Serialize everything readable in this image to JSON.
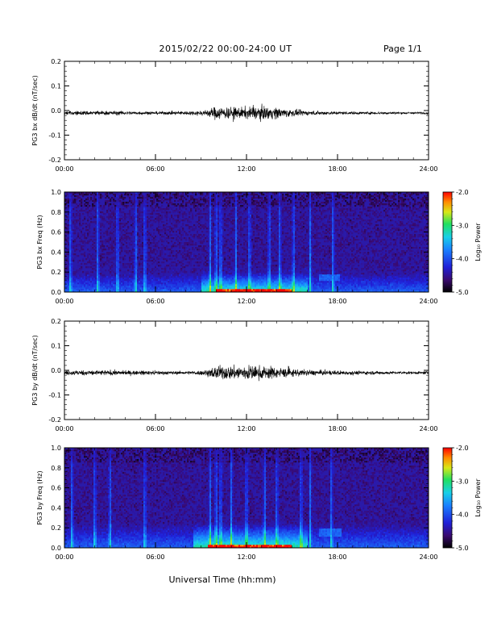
{
  "header": {
    "title": "2015/02/22  00:00-24:00 UT",
    "page": "Page 1/1"
  },
  "xlabel": "Universal Time (hh:mm)",
  "chart_data": [
    {
      "type": "line",
      "ylabel": "PG3 bx dB/dt (nT/sec)",
      "xlim": [
        0,
        24
      ],
      "ylim": [
        -0.2,
        0.2
      ],
      "yticks": [
        -0.2,
        -0.1,
        0.0,
        0.1,
        0.2
      ],
      "ytick_labels": [
        "-0.2",
        "-0.1",
        "0.0",
        "0.1",
        "0.2"
      ],
      "xticks": [
        0,
        6,
        12,
        18,
        24
      ],
      "xtick_labels": [
        "00:00",
        "06:00",
        "12:00",
        "18:00",
        "24:00"
      ],
      "baseline": -0.01,
      "envelope": {
        "hours": [
          0,
          2,
          4,
          6,
          8,
          9,
          9.5,
          10,
          11,
          12,
          13,
          14,
          15,
          16,
          17,
          18,
          20,
          22,
          24
        ],
        "amplitude": [
          0.01,
          0.012,
          0.01,
          0.008,
          0.01,
          0.013,
          0.02,
          0.035,
          0.03,
          0.03,
          0.035,
          0.03,
          0.018,
          0.012,
          0.01,
          0.008,
          0.007,
          0.006,
          0.006
        ]
      },
      "line_color": "#000000"
    },
    {
      "type": "heatmap",
      "ylabel": "PG3 bx Freq (Hz)",
      "xlim": [
        0,
        24
      ],
      "ylim": [
        0.0,
        1.0
      ],
      "yticks": [
        0.0,
        0.2,
        0.4,
        0.6,
        0.8,
        1.0
      ],
      "ytick_labels": [
        "0.0",
        "0.2",
        "0.4",
        "0.6",
        "0.8",
        "1.0"
      ],
      "xticks": [
        0,
        6,
        12,
        18,
        24
      ],
      "xtick_labels": [
        "00:00",
        "06:00",
        "12:00",
        "18:00",
        "24:00"
      ],
      "colorbar": {
        "label": "Log₁₀ Power",
        "range": [
          -5.0,
          -2.0
        ],
        "ticks": [
          -2.0,
          -3.0,
          -4.0,
          -5.0
        ],
        "tick_labels": [
          "-2.0",
          "-3.0",
          "-4.0",
          "-5.0"
        ]
      },
      "power_range": [
        -5.0,
        -2.0
      ],
      "features": {
        "low_freq_band": {
          "freq_max": 0.12,
          "peak_hours": [
            10,
            15
          ],
          "peak_power": -2.3
        },
        "vertical_bursts_hours": [
          0.4,
          2.2,
          3.5,
          4.7,
          5.3,
          9.6,
          10.0,
          10.3,
          11.3,
          12.2,
          13.5,
          14.2,
          15.1,
          16.2,
          17.7
        ],
        "secondary_band": {
          "hours": [
            16.8,
            18.2
          ],
          "freq": [
            0.12,
            0.18
          ],
          "power": -3.9
        }
      }
    },
    {
      "type": "line",
      "ylabel": "PG3 by dB/dt (nT/sec)",
      "xlim": [
        0,
        24
      ],
      "ylim": [
        -0.2,
        0.2
      ],
      "yticks": [
        -0.2,
        -0.1,
        0.0,
        0.1,
        0.2
      ],
      "ytick_labels": [
        "-0.2",
        "-0.1",
        "0.0",
        "0.1",
        "0.2"
      ],
      "xticks": [
        0,
        6,
        12,
        18,
        24
      ],
      "xtick_labels": [
        "00:00",
        "06:00",
        "12:00",
        "18:00",
        "24:00"
      ],
      "baseline": -0.01,
      "envelope": {
        "hours": [
          0,
          2,
          4,
          6,
          8,
          9,
          9.5,
          10,
          11,
          12,
          13,
          14,
          15,
          16,
          17,
          18,
          20,
          22,
          24
        ],
        "amplitude": [
          0.012,
          0.014,
          0.012,
          0.01,
          0.008,
          0.012,
          0.02,
          0.035,
          0.035,
          0.04,
          0.035,
          0.03,
          0.02,
          0.015,
          0.013,
          0.012,
          0.009,
          0.007,
          0.007
        ]
      },
      "line_color": "#000000"
    },
    {
      "type": "heatmap",
      "ylabel": "PG3 by Freq (Hz)",
      "xlim": [
        0,
        24
      ],
      "ylim": [
        0.0,
        1.0
      ],
      "yticks": [
        0.0,
        0.2,
        0.4,
        0.6,
        0.8,
        1.0
      ],
      "ytick_labels": [
        "0.0",
        "0.2",
        "0.4",
        "0.6",
        "0.8",
        "1.0"
      ],
      "xticks": [
        0,
        6,
        12,
        18,
        24
      ],
      "xtick_labels": [
        "00:00",
        "06:00",
        "12:00",
        "18:00",
        "24:00"
      ],
      "colorbar": {
        "label": "Log₁₀ Power",
        "range": [
          -5.0,
          -2.0
        ],
        "ticks": [
          -2.0,
          -3.0,
          -4.0,
          -5.0
        ],
        "tick_labels": [
          "-2.0",
          "-3.0",
          "-4.0",
          "-5.0"
        ]
      },
      "power_range": [
        -5.0,
        -2.0
      ],
      "features": {
        "low_freq_band": {
          "freq_max": 0.15,
          "peak_hours": [
            9.5,
            15
          ],
          "peak_power": -2.4
        },
        "vertical_bursts_hours": [
          0.5,
          2.0,
          3.0,
          5.3,
          9.6,
          10.0,
          10.3,
          11.0,
          12.0,
          13.2,
          14.0,
          15.6,
          16.2,
          17.6
        ],
        "secondary_band": {
          "hours": [
            16.8,
            18.3
          ],
          "freq": [
            0.12,
            0.2
          ],
          "power": -3.9
        }
      }
    }
  ]
}
